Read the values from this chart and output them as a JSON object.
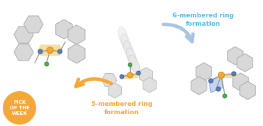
{
  "bg_color": "#ffffff",
  "text_6membered": "6-membered ring\nformation",
  "text_5membered": "5-membered ring\nformation",
  "text_pick": "PICK\nOF THE\nWEEK",
  "text_6_color": "#4dbde8",
  "text_5_color": "#f5a83a",
  "pick_circle_color": "#f5a83a",
  "pick_text_color": "#ffffff",
  "arrow_blue_color": "#a8c4e0",
  "arrow_orange_color": "#f5a83a",
  "pt_color": "#f5a83a",
  "n_color": "#5b7db1",
  "cl_color": "#4caf50",
  "ring_fill": "#f5dfa0",
  "ring_6_fill": "#b0c8f0",
  "hex_face": "#d8d8d8",
  "hex_edge": "#aaaaaa",
  "hex_face_mid": "#e0e0e0",
  "hex_edge_mid": "#bbbbbb",
  "ellipse_face": "#e8e8e8",
  "ellipse_edge": "#cccccc"
}
